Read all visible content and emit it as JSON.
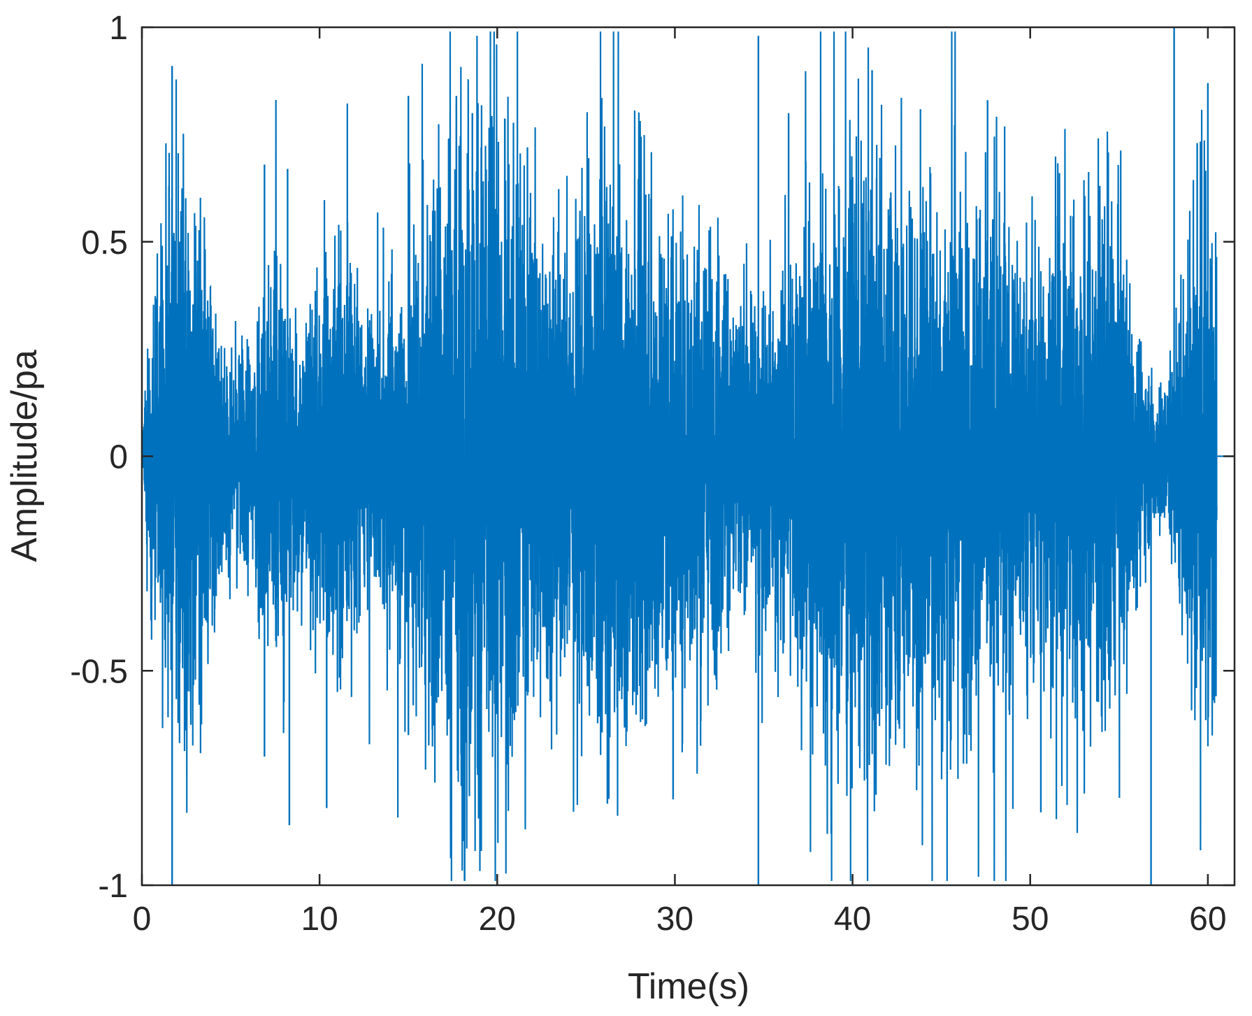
{
  "chart_data": {
    "type": "line",
    "title": "",
    "xlabel": "Time(s)",
    "ylabel": "Amplitude/pa",
    "xlim": [
      0,
      61.5
    ],
    "ylim": [
      -1,
      1
    ],
    "x_ticks": [
      0,
      10,
      20,
      30,
      40,
      50,
      60
    ],
    "x_tick_labels": [
      "0",
      "10",
      "20",
      "30",
      "40",
      "50",
      "60"
    ],
    "y_ticks": [
      -1,
      -0.5,
      0,
      0.5,
      1
    ],
    "y_tick_labels": [
      "-1",
      "-0.5",
      "0",
      "0.5",
      "1"
    ],
    "grid": false,
    "box": true,
    "line_color": "#0072BD",
    "signal_end_time": 60.5,
    "series": [
      {
        "name": "",
        "description_points": [
          {
            "x": 1.7,
            "y": 0.91
          },
          {
            "x": 1.7,
            "y": -1.0
          },
          {
            "x": 6.9,
            "y": 0.68
          },
          {
            "x": 6.9,
            "y": -0.7
          },
          {
            "x": 8.2,
            "y": 0.67
          },
          {
            "x": 8.3,
            "y": -0.86
          },
          {
            "x": 10.4,
            "y": -0.82
          },
          {
            "x": 15.0,
            "y": 0.84
          },
          {
            "x": 15.0,
            "y": -0.65
          },
          {
            "x": 17.7,
            "y": 0.84
          },
          {
            "x": 18.6,
            "y": 0.8
          },
          {
            "x": 19.1,
            "y": -0.92
          },
          {
            "x": 21.7,
            "y": 0.72
          },
          {
            "x": 26.2,
            "y": -0.81
          },
          {
            "x": 29.9,
            "y": -0.8
          },
          {
            "x": 34.7,
            "y": 0.98
          },
          {
            "x": 34.7,
            "y": -1.0
          },
          {
            "x": 36.4,
            "y": 0.8
          },
          {
            "x": 38.8,
            "y": -0.88
          },
          {
            "x": 41.1,
            "y": 0.9
          },
          {
            "x": 47.6,
            "y": 0.83
          },
          {
            "x": 50.6,
            "y": -0.83
          },
          {
            "x": 56.8,
            "y": -1.0
          },
          {
            "x": 58.1,
            "y": 1.0
          },
          {
            "x": 59.4,
            "y": 0.73
          },
          {
            "x": 60.0,
            "y": 0.87
          }
        ]
      }
    ]
  }
}
